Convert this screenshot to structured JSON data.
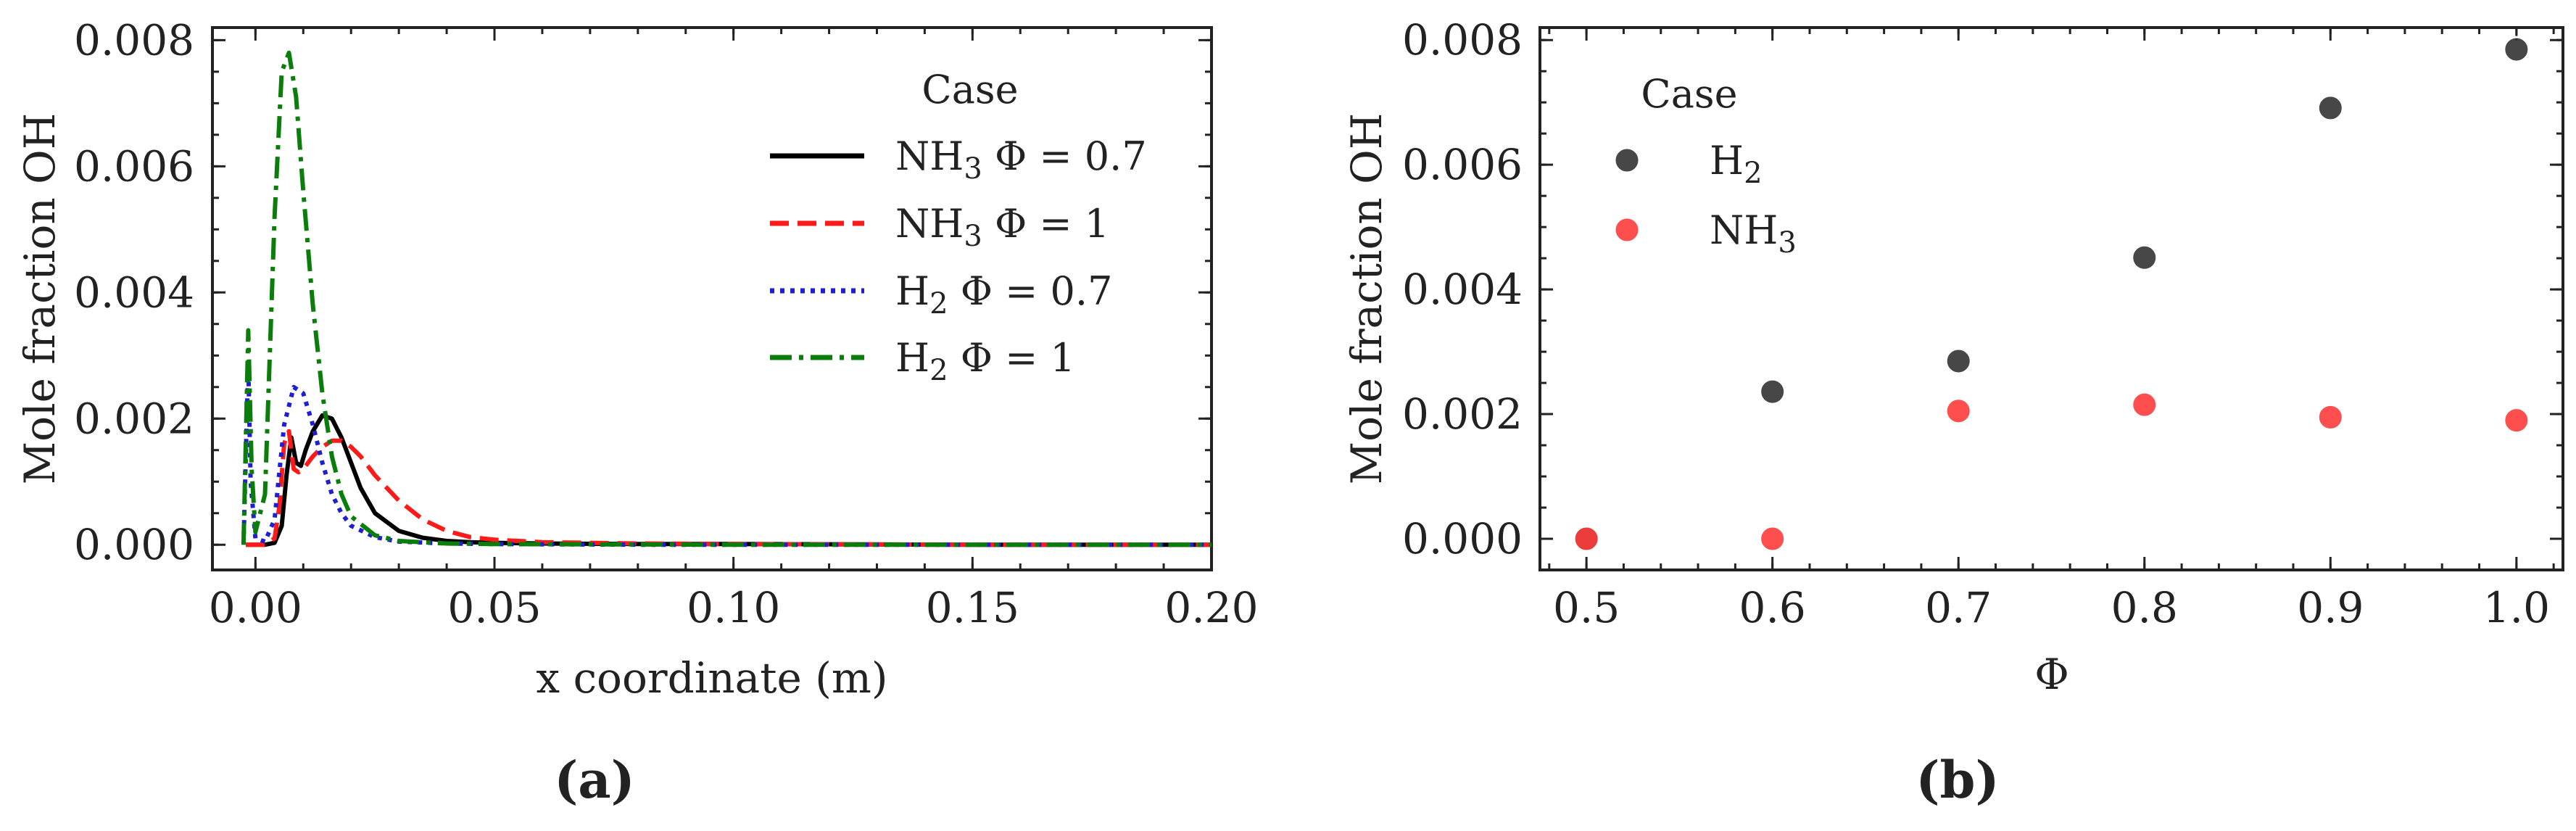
{
  "chart_data": [
    {
      "type": "line",
      "panel": "(a)",
      "title": "",
      "xlabel": "x coordinate (m)",
      "ylabel": "Mole fraction OH",
      "xlim": [
        -0.009,
        0.2
      ],
      "ylim": [
        -0.0004,
        0.0082
      ],
      "xticks": [
        0.0,
        0.05,
        0.1,
        0.15,
        0.2
      ],
      "xtick_labels": [
        "0.00",
        "0.05",
        "0.10",
        "0.15",
        "0.20"
      ],
      "yticks": [
        0.0,
        0.002,
        0.004,
        0.006,
        0.008
      ],
      "ytick_labels": [
        "0.000",
        "0.002",
        "0.004",
        "0.006",
        "0.008"
      ],
      "legend_title": "Case",
      "legend_position": "top-right",
      "series": [
        {
          "name": "NH₃ Φ = 0.7",
          "name_main": "NH",
          "name_sub": "3",
          "name_tail": " Φ = 0.7",
          "color": "#000000",
          "style": "solid",
          "x": [
            -0.002,
            0.002,
            0.004,
            0.0055,
            0.0065,
            0.0075,
            0.0085,
            0.0095,
            0.0105,
            0.012,
            0.014,
            0.016,
            0.018,
            0.02,
            0.022,
            0.025,
            0.03,
            0.035,
            0.04,
            0.045,
            0.05,
            0.06,
            0.08,
            0.1,
            0.15,
            0.2
          ],
          "y": [
            0.0,
            0.0,
            3e-05,
            0.0003,
            0.0011,
            0.0017,
            0.0013,
            0.00125,
            0.0015,
            0.0018,
            0.00205,
            0.002,
            0.0017,
            0.0013,
            0.0009,
            0.0005,
            0.00022,
            0.00011,
            6e-05,
            4e-05,
            3e-05,
            2e-05,
            1e-05,
            1e-05,
            0.0,
            0.0
          ]
        },
        {
          "name": "NH₃ Φ = 1",
          "name_main": "NH",
          "name_sub": "3",
          "name_tail": " Φ = 1",
          "color": "#ff1a1a",
          "style": "dashed",
          "x": [
            -0.002,
            0.002,
            0.004,
            0.005,
            0.006,
            0.007,
            0.008,
            0.009,
            0.01,
            0.012,
            0.014,
            0.016,
            0.018,
            0.02,
            0.022,
            0.025,
            0.03,
            0.035,
            0.04,
            0.045,
            0.05,
            0.06,
            0.08,
            0.1,
            0.15,
            0.2
          ],
          "y": [
            0.0,
            0.0,
            0.0001,
            0.0006,
            0.0016,
            0.0018,
            0.0012,
            0.00115,
            0.0012,
            0.0014,
            0.00155,
            0.00165,
            0.00165,
            0.00155,
            0.0014,
            0.0011,
            0.0007,
            0.0004,
            0.00022,
            0.00012,
            8e-05,
            4e-05,
            2e-05,
            1e-05,
            0.0,
            0.0
          ]
        },
        {
          "name": "H₂ Φ = 0.7",
          "name_main": "H",
          "name_sub": "2",
          "name_tail": " Φ = 0.7",
          "color": "#1f1fd1",
          "style": "dotted",
          "x": [
            -0.0025,
            -0.0015,
            -0.001,
            0.0,
            0.002,
            0.004,
            0.006,
            0.008,
            0.01,
            0.012,
            0.014,
            0.016,
            0.018,
            0.02,
            0.025,
            0.03,
            0.04,
            0.05,
            0.08,
            0.1,
            0.15,
            0.2
          ],
          "y": [
            0.0,
            0.0029,
            0.001,
            0.0001,
            5e-05,
            0.0004,
            0.0019,
            0.0025,
            0.0024,
            0.0019,
            0.0013,
            0.0008,
            0.0005,
            0.0003,
            0.00012,
            5e-05,
            2e-05,
            1e-05,
            0.0,
            0.0,
            0.0,
            0.0
          ]
        },
        {
          "name": "H₂ Φ = 1",
          "name_main": "H",
          "name_sub": "2",
          "name_tail": " Φ = 1",
          "color": "#0a7d0a",
          "style": "dashdot",
          "x": [
            -0.0025,
            -0.0015,
            -0.0008,
            0.0,
            0.002,
            0.004,
            0.0055,
            0.007,
            0.0085,
            0.01,
            0.012,
            0.014,
            0.016,
            0.018,
            0.02,
            0.025,
            0.03,
            0.04,
            0.05,
            0.1,
            0.15,
            0.2
          ],
          "y": [
            0.0,
            0.0034,
            0.0012,
            0.0002,
            0.0008,
            0.0052,
            0.0075,
            0.0078,
            0.0071,
            0.0056,
            0.0038,
            0.0024,
            0.0014,
            0.0008,
            0.00045,
            0.00015,
            6e-05,
            2e-05,
            1e-05,
            0.0,
            0.0,
            0.0
          ]
        }
      ]
    },
    {
      "type": "scatter",
      "panel": "(b)",
      "title": "",
      "xlabel": "Φ",
      "ylabel": "Mole fraction OH",
      "xlim": [
        0.475,
        1.025
      ],
      "ylim": [
        -0.0005,
        0.0082
      ],
      "xticks": [
        0.5,
        0.6,
        0.7,
        0.8,
        0.9,
        1.0
      ],
      "xtick_labels": [
        "0.5",
        "0.6",
        "0.7",
        "0.8",
        "0.9",
        "1.0"
      ],
      "yticks": [
        0.0,
        0.002,
        0.004,
        0.006,
        0.008
      ],
      "ytick_labels": [
        "0.000",
        "0.002",
        "0.004",
        "0.006",
        "0.008"
      ],
      "legend_title": "Case",
      "legend_position": "top-left",
      "series": [
        {
          "name": "H₂",
          "name_main": "H",
          "name_sub": "2",
          "name_tail": "",
          "color": "#333333",
          "x": [
            0.5,
            0.6,
            0.7,
            0.8,
            0.9,
            1.0
          ],
          "y": [
            0.0,
            0.00236,
            0.00285,
            0.00451,
            0.00691,
            0.00785
          ]
        },
        {
          "name": "NH₃",
          "name_main": "NH",
          "name_sub": "3",
          "name_tail": "",
          "color": "#ff3b3b",
          "x": [
            0.5,
            0.6,
            0.7,
            0.8,
            0.9,
            1.0
          ],
          "y": [
            0.0,
            0.0,
            0.00205,
            0.00215,
            0.00195,
            0.0019
          ]
        }
      ]
    }
  ]
}
